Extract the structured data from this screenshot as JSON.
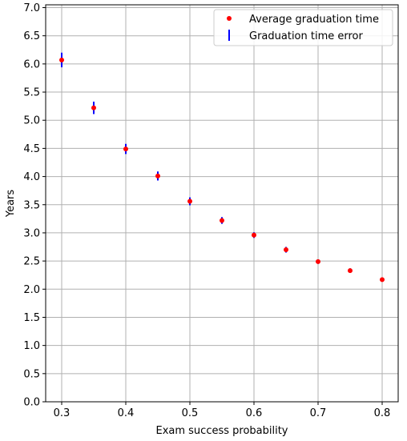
{
  "chart_data": {
    "type": "scatter",
    "title": "",
    "xlabel": "Exam success probability",
    "ylabel": "Years",
    "xlim": [
      0.275,
      0.825
    ],
    "ylim": [
      0.0,
      7.05
    ],
    "x_ticks": [
      "0.3",
      "0.4",
      "0.5",
      "0.6",
      "0.7",
      "0.8"
    ],
    "x_tick_values": [
      0.3,
      0.4,
      0.5,
      0.6,
      0.7,
      0.8
    ],
    "y_ticks": [
      "0.0",
      "0.5",
      "1.0",
      "1.5",
      "2.0",
      "2.5",
      "3.0",
      "3.5",
      "4.0",
      "4.5",
      "5.0",
      "5.5",
      "6.0",
      "6.5",
      "7.0"
    ],
    "y_tick_values": [
      0.0,
      0.5,
      1.0,
      1.5,
      2.0,
      2.5,
      3.0,
      3.5,
      4.0,
      4.5,
      5.0,
      5.5,
      6.0,
      6.5,
      7.0
    ],
    "grid": true,
    "legend_position": "top-right",
    "series": [
      {
        "name": "Average graduation time",
        "color": "#ff0000",
        "marker": "dot",
        "x": [
          0.3,
          0.35,
          0.4,
          0.45,
          0.5,
          0.55,
          0.6,
          0.65,
          0.7,
          0.75,
          0.8
        ],
        "y": [
          6.07,
          5.22,
          4.49,
          4.01,
          3.56,
          3.22,
          2.96,
          2.7,
          2.49,
          2.33,
          2.17
        ]
      },
      {
        "name": "Graduation time error",
        "color": "#0000ff",
        "marker": "vline",
        "x": [
          0.3,
          0.35,
          0.4,
          0.45,
          0.5,
          0.55,
          0.6,
          0.65,
          0.7,
          0.75,
          0.8
        ],
        "low": [
          5.94,
          5.11,
          4.4,
          3.93,
          3.49,
          3.16,
          2.91,
          2.65,
          2.45,
          2.29,
          2.14
        ],
        "high": [
          6.2,
          5.33,
          4.58,
          4.09,
          3.63,
          3.28,
          3.01,
          2.75,
          2.53,
          2.37,
          2.2
        ]
      }
    ]
  }
}
